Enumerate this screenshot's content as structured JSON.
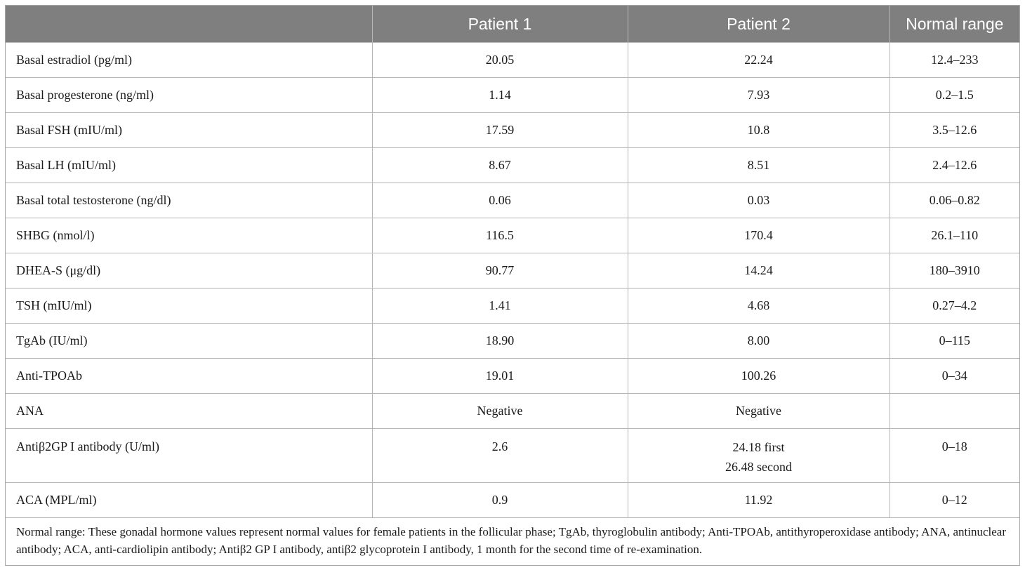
{
  "table": {
    "headers": [
      "",
      "Patient 1",
      "Patient 2",
      "Normal range"
    ],
    "rows": [
      {
        "label": "Basal estradiol (pg/ml)",
        "p1": "20.05",
        "p2": [
          "22.24"
        ],
        "range": "12.4–233"
      },
      {
        "label": "Basal progesterone (ng/ml)",
        "p1": "1.14",
        "p2": [
          "7.93"
        ],
        "range": "0.2–1.5"
      },
      {
        "label": "Basal FSH (mIU/ml)",
        "p1": "17.59",
        "p2": [
          "10.8"
        ],
        "range": "3.5–12.6"
      },
      {
        "label": "Basal LH (mIU/ml)",
        "p1": "8.67",
        "p2": [
          "8.51"
        ],
        "range": "2.4–12.6"
      },
      {
        "label": "Basal total testosterone (ng/dl)",
        "p1": "0.06",
        "p2": [
          "0.03"
        ],
        "range": "0.06–0.82"
      },
      {
        "label": "SHBG (nmol/l)",
        "p1": "116.5",
        "p2": [
          "170.4"
        ],
        "range": "26.1–110"
      },
      {
        "label": "DHEA-S (μg/dl)",
        "p1": "90.77",
        "p2": [
          "14.24"
        ],
        "range": "180–3910"
      },
      {
        "label": "TSH (mIU/ml)",
        "p1": "1.41",
        "p2": [
          "4.68"
        ],
        "range": "0.27–4.2"
      },
      {
        "label": "TgAb (IU/ml)",
        "p1": "18.90",
        "p2": [
          "8.00"
        ],
        "range": "0–115"
      },
      {
        "label": "Anti-TPOAb",
        "p1": "19.01",
        "p2": [
          "100.26"
        ],
        "range": "0–34"
      },
      {
        "label": "ANA",
        "p1": "Negative",
        "p2": [
          "Negative"
        ],
        "range": ""
      },
      {
        "label": "Antiβ2GP I antibody (U/ml)",
        "p1": "2.6",
        "p2": [
          "24.18 first",
          "26.48 second"
        ],
        "range": "0–18"
      },
      {
        "label": "ACA (MPL/ml)",
        "p1": "0.9",
        "p2": [
          "11.92"
        ],
        "range": "0–12"
      }
    ],
    "footnote": "Normal range: These gonadal hormone values represent normal values for female patients in the follicular phase; TgAb, thyroglobulin antibody; Anti-TPOAb, antithyroperoxidase antibody; ANA, antinuclear antibody; ACA, anti-cardiolipin antibody; Antiβ2 GP I antibody, antiβ2 glycoprotein I antibody, 1 month for the second time of re-examination."
  }
}
